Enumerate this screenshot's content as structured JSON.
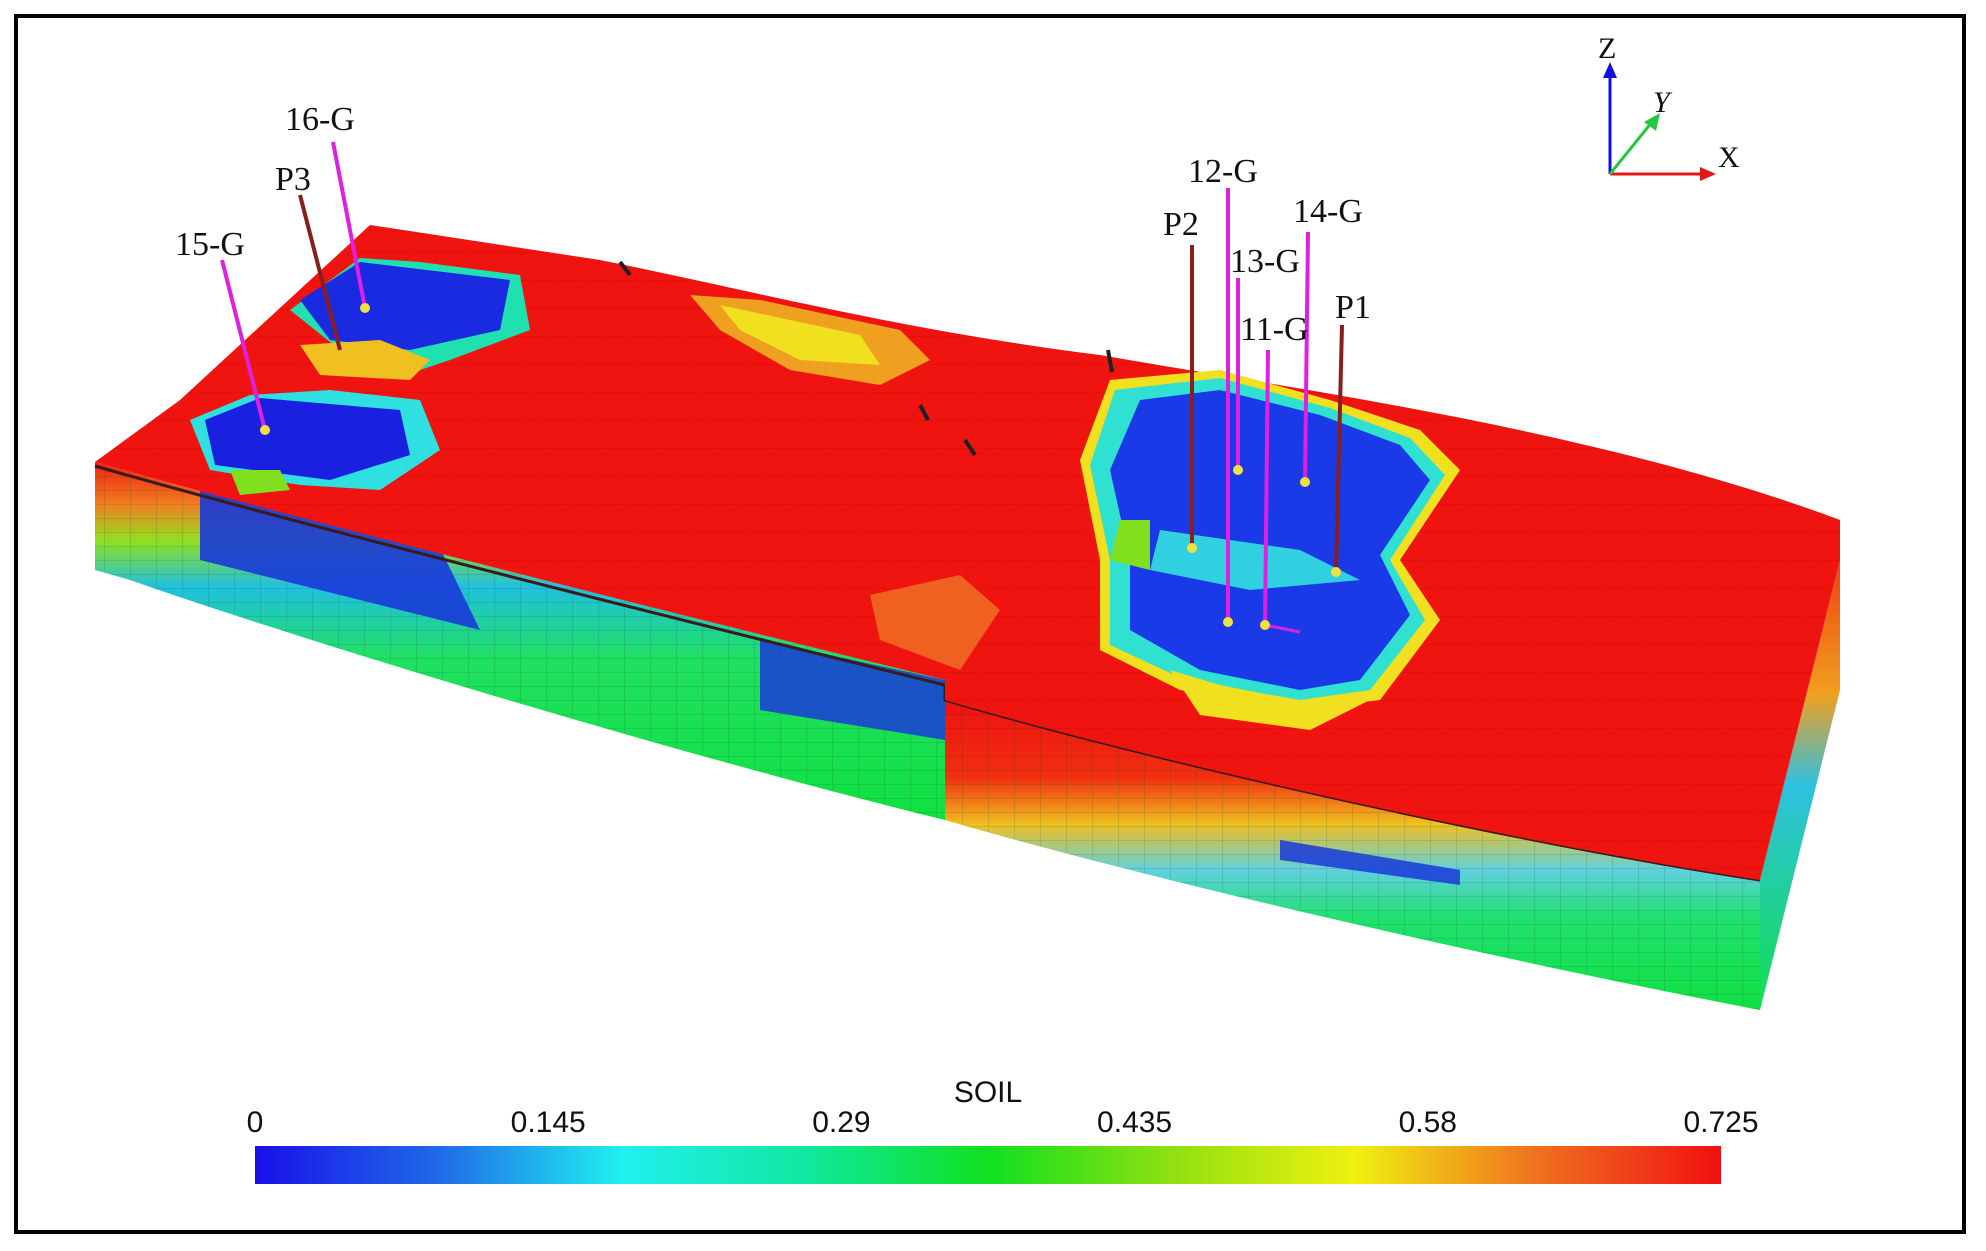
{
  "axes": {
    "z": "Z",
    "y": "Y",
    "x": "X",
    "z_color": "#1010e0",
    "y_color": "#22c840",
    "x_color": "#e01818"
  },
  "wells": [
    {
      "id": "16-G",
      "type": "injector"
    },
    {
      "id": "P3",
      "type": "producer"
    },
    {
      "id": "15-G",
      "type": "injector"
    },
    {
      "id": "12-G",
      "type": "injector"
    },
    {
      "id": "14-G",
      "type": "injector"
    },
    {
      "id": "P2",
      "type": "producer"
    },
    {
      "id": "13-G",
      "type": "injector"
    },
    {
      "id": "11-G",
      "type": "injector"
    },
    {
      "id": "P1",
      "type": "producer"
    }
  ],
  "well_colors": {
    "injector": "#e020e0",
    "producer": "#8a1e1e",
    "marker": "#f0e040"
  },
  "colorbar": {
    "title": "SOIL",
    "ticks": [
      "0",
      "0.145",
      "0.29",
      "0.435",
      "0.58",
      "0.725"
    ],
    "min": 0,
    "max": 0.725,
    "colors": [
      "#1a10e8",
      "#1f6ae8",
      "#20f0f0",
      "#10e8a0",
      "#10e020",
      "#90e010",
      "#f0f010",
      "#f07020",
      "#f01010"
    ]
  }
}
